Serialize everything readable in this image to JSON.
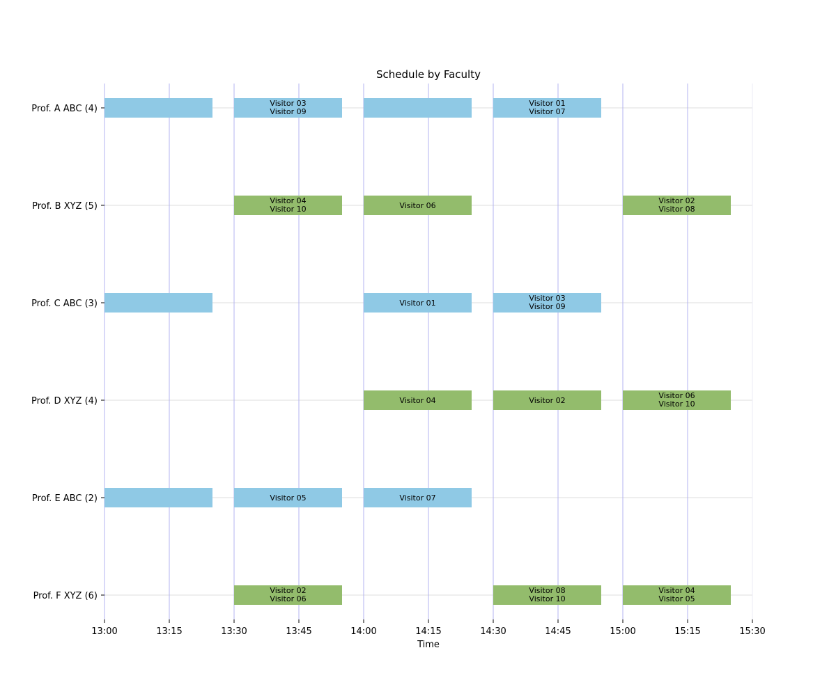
{
  "chart_data": {
    "type": "gantt",
    "title": "Schedule by Faculty",
    "xlabel": "Time",
    "ylabel": "",
    "x_ticks": [
      "13:00",
      "13:15",
      "13:30",
      "13:45",
      "14:00",
      "14:15",
      "14:30",
      "14:45",
      "15:00",
      "15:15",
      "15:30"
    ],
    "x_range": [
      "13:00",
      "15:30"
    ],
    "slot_length_minutes": 25,
    "colors": {
      "ABC": "#8fc9e5",
      "XYZ": "#93bc6c",
      "gridline_vertical": "#b3b3f0",
      "gridline_horizontal": "#dcdcdc"
    },
    "grid": true,
    "categories": [
      "Prof. A ABC (4)",
      "Prof. B XYZ (5)",
      "Prof. C ABC (3)",
      "Prof. D XYZ (4)",
      "Prof. E ABC (2)",
      "Prof. F XYZ (6)"
    ],
    "series": [
      {
        "row": "Prof. A ABC (4)",
        "group": "ABC",
        "bars": [
          {
            "start": "13:00",
            "end": "13:25",
            "visitors": []
          },
          {
            "start": "13:30",
            "end": "13:55",
            "visitors": [
              "Visitor 03",
              "Visitor 09"
            ]
          },
          {
            "start": "14:00",
            "end": "14:25",
            "visitors": []
          },
          {
            "start": "14:30",
            "end": "14:55",
            "visitors": [
              "Visitor 01",
              "Visitor 07"
            ]
          }
        ]
      },
      {
        "row": "Prof. B XYZ (5)",
        "group": "XYZ",
        "bars": [
          {
            "start": "13:30",
            "end": "13:55",
            "visitors": [
              "Visitor 04",
              "Visitor 10"
            ]
          },
          {
            "start": "14:00",
            "end": "14:25",
            "visitors": [
              "Visitor 06"
            ]
          },
          {
            "start": "15:00",
            "end": "15:25",
            "visitors": [
              "Visitor 02",
              "Visitor 08"
            ]
          }
        ]
      },
      {
        "row": "Prof. C ABC (3)",
        "group": "ABC",
        "bars": [
          {
            "start": "13:00",
            "end": "13:25",
            "visitors": []
          },
          {
            "start": "14:00",
            "end": "14:25",
            "visitors": [
              "Visitor 01"
            ]
          },
          {
            "start": "14:30",
            "end": "14:55",
            "visitors": [
              "Visitor 03",
              "Visitor 09"
            ]
          }
        ]
      },
      {
        "row": "Prof. D XYZ (4)",
        "group": "XYZ",
        "bars": [
          {
            "start": "14:00",
            "end": "14:25",
            "visitors": [
              "Visitor 04"
            ]
          },
          {
            "start": "14:30",
            "end": "14:55",
            "visitors": [
              "Visitor 02"
            ]
          },
          {
            "start": "15:00",
            "end": "15:25",
            "visitors": [
              "Visitor 06",
              "Visitor 10"
            ]
          }
        ]
      },
      {
        "row": "Prof. E ABC (2)",
        "group": "ABC",
        "bars": [
          {
            "start": "13:00",
            "end": "13:25",
            "visitors": []
          },
          {
            "start": "13:30",
            "end": "13:55",
            "visitors": [
              "Visitor 05"
            ]
          },
          {
            "start": "14:00",
            "end": "14:25",
            "visitors": [
              "Visitor 07"
            ]
          }
        ]
      },
      {
        "row": "Prof. F XYZ (6)",
        "group": "XYZ",
        "bars": [
          {
            "start": "13:30",
            "end": "13:55",
            "visitors": [
              "Visitor 02",
              "Visitor 06"
            ]
          },
          {
            "start": "14:30",
            "end": "14:55",
            "visitors": [
              "Visitor 08",
              "Visitor 10"
            ]
          },
          {
            "start": "15:00",
            "end": "15:25",
            "visitors": [
              "Visitor 04",
              "Visitor 05"
            ]
          }
        ]
      }
    ]
  }
}
